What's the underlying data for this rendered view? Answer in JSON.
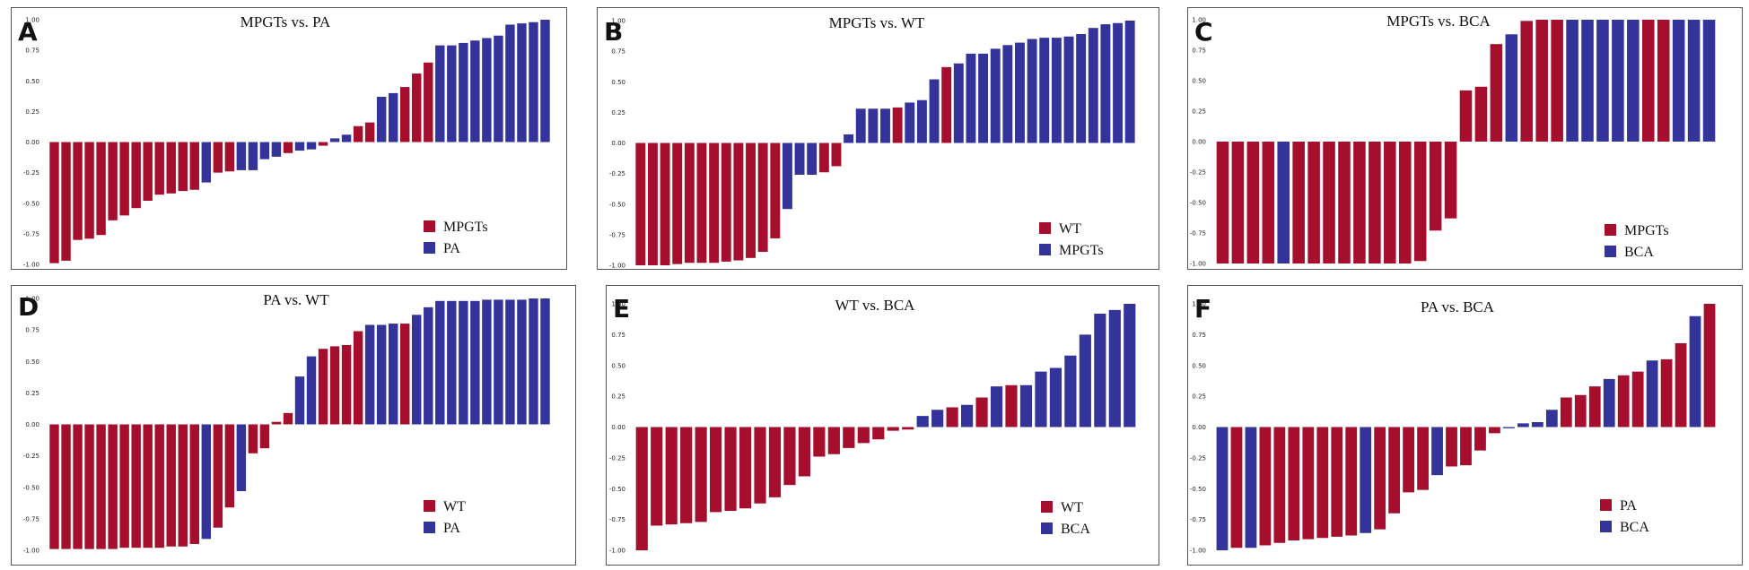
{
  "colors": {
    "red": "#A50F2D",
    "blue": "#333399"
  },
  "chart_data": [
    {
      "type": "bar",
      "panel": "A",
      "title": "MPGTs vs. PA",
      "ylim": [
        -1.0,
        1.0
      ],
      "yticks": [
        "1.00",
        "0.75",
        "0.50",
        "0.25",
        "0.00",
        "-0.25",
        "-0.50",
        "-0.75",
        "-1.00"
      ],
      "legend": [
        {
          "label": "MPGTs",
          "color": "red"
        },
        {
          "label": "PA",
          "color": "blue"
        }
      ],
      "values": [
        -0.99,
        -0.97,
        -0.8,
        -0.79,
        -0.76,
        -0.64,
        -0.6,
        -0.54,
        -0.48,
        -0.43,
        -0.42,
        -0.4,
        -0.39,
        -0.33,
        -0.25,
        -0.24,
        -0.23,
        -0.23,
        -0.14,
        -0.12,
        -0.09,
        -0.07,
        -0.06,
        -0.03,
        0.03,
        0.06,
        0.13,
        0.16,
        0.37,
        0.4,
        0.45,
        0.56,
        0.65,
        0.79,
        0.79,
        0.81,
        0.83,
        0.85,
        0.87,
        0.96,
        0.97,
        0.98,
        1.0
      ],
      "colors": [
        "red",
        "red",
        "red",
        "red",
        "red",
        "red",
        "red",
        "red",
        "red",
        "red",
        "red",
        "red",
        "red",
        "blue",
        "red",
        "red",
        "blue",
        "blue",
        "blue",
        "blue",
        "red",
        "blue",
        "blue",
        "red",
        "blue",
        "blue",
        "red",
        "red",
        "blue",
        "blue",
        "red",
        "red",
        "red",
        "blue",
        "blue",
        "blue",
        "blue",
        "blue",
        "blue",
        "blue",
        "blue",
        "blue",
        "blue"
      ]
    },
    {
      "type": "bar",
      "panel": "B",
      "title": "MPGTs vs. WT",
      "ylim": [
        -1.0,
        1.0
      ],
      "yticks": [
        "1.00",
        "0.75",
        "0.50",
        "0.25",
        "0.00",
        "-0.25",
        "-0.50",
        "-0.75",
        "-1.00"
      ],
      "legend": [
        {
          "label": "WT",
          "color": "red"
        },
        {
          "label": "MPGTs",
          "color": "blue"
        }
      ],
      "values": [
        -1.0,
        -1.0,
        -1.0,
        -0.99,
        -0.98,
        -0.98,
        -0.98,
        -0.97,
        -0.96,
        -0.94,
        -0.89,
        -0.78,
        -0.54,
        -0.26,
        -0.26,
        -0.24,
        -0.19,
        0.07,
        0.28,
        0.28,
        0.28,
        0.29,
        0.33,
        0.35,
        0.52,
        0.62,
        0.65,
        0.73,
        0.73,
        0.77,
        0.8,
        0.82,
        0.85,
        0.86,
        0.86,
        0.87,
        0.89,
        0.94,
        0.97,
        0.98,
        1.0
      ],
      "colors": [
        "red",
        "red",
        "red",
        "red",
        "red",
        "red",
        "red",
        "red",
        "red",
        "red",
        "red",
        "red",
        "blue",
        "blue",
        "blue",
        "red",
        "red",
        "blue",
        "blue",
        "blue",
        "blue",
        "red",
        "blue",
        "blue",
        "blue",
        "red",
        "blue",
        "blue",
        "blue",
        "blue",
        "blue",
        "blue",
        "blue",
        "blue",
        "blue",
        "blue",
        "blue",
        "blue",
        "blue",
        "blue",
        "blue"
      ]
    },
    {
      "type": "bar",
      "panel": "C",
      "title": "MPGTs vs. BCA",
      "ylim": [
        -1.0,
        1.0
      ],
      "yticks": [
        "1.00",
        "0.75",
        "0.50",
        "0.25",
        "0.00",
        "-0.25",
        "-0.50",
        "-0.75",
        "-1.00"
      ],
      "legend": [
        {
          "label": "MPGTs",
          "color": "red"
        },
        {
          "label": "BCA",
          "color": "blue"
        }
      ],
      "values": [
        -1.0,
        -1.0,
        -1.0,
        -1.0,
        -1.0,
        -1.0,
        -1.0,
        -1.0,
        -1.0,
        -1.0,
        -1.0,
        -1.0,
        -1.0,
        -0.98,
        -0.73,
        -0.63,
        0.42,
        0.45,
        0.8,
        0.88,
        0.99,
        1.0,
        1.0,
        1.0,
        1.0,
        1.0,
        1.0,
        1.0,
        1.0,
        1.0,
        1.0,
        1.0,
        1.0
      ],
      "colors": [
        "red",
        "red",
        "red",
        "red",
        "blue",
        "red",
        "red",
        "red",
        "red",
        "red",
        "red",
        "red",
        "red",
        "red",
        "red",
        "red",
        "red",
        "red",
        "red",
        "blue",
        "red",
        "red",
        "red",
        "blue",
        "blue",
        "blue",
        "blue",
        "blue",
        "red",
        "red",
        "blue",
        "blue",
        "blue"
      ]
    },
    {
      "type": "bar",
      "panel": "D",
      "title": "PA vs. WT",
      "ylim": [
        -1.0,
        1.0
      ],
      "yticks": [
        "1.00",
        "0.75",
        "0.50",
        "0.25",
        "0.00",
        "-0.25",
        "-0.50",
        "-0.75",
        "-1.00"
      ],
      "legend": [
        {
          "label": "WT",
          "color": "red"
        },
        {
          "label": "PA",
          "color": "blue"
        }
      ],
      "values": [
        -0.99,
        -0.99,
        -0.99,
        -0.99,
        -0.99,
        -0.99,
        -0.98,
        -0.98,
        -0.98,
        -0.98,
        -0.97,
        -0.97,
        -0.95,
        -0.91,
        -0.82,
        -0.66,
        -0.53,
        -0.23,
        -0.19,
        0.02,
        0.09,
        0.38,
        0.54,
        0.6,
        0.62,
        0.63,
        0.74,
        0.79,
        0.79,
        0.8,
        0.8,
        0.87,
        0.93,
        0.98,
        0.98,
        0.98,
        0.98,
        0.99,
        0.99,
        0.99,
        0.99,
        1.0,
        1.0
      ],
      "colors": [
        "red",
        "red",
        "red",
        "red",
        "red",
        "red",
        "red",
        "red",
        "red",
        "red",
        "red",
        "red",
        "red",
        "blue",
        "red",
        "red",
        "blue",
        "red",
        "red",
        "red",
        "red",
        "blue",
        "blue",
        "red",
        "red",
        "red",
        "red",
        "blue",
        "blue",
        "blue",
        "red",
        "blue",
        "blue",
        "blue",
        "blue",
        "blue",
        "blue",
        "blue",
        "blue",
        "blue",
        "blue",
        "blue",
        "blue"
      ]
    },
    {
      "type": "bar",
      "panel": "E",
      "title": "WT vs. BCA",
      "ylim": [
        -1.0,
        1.0
      ],
      "yticks": [
        "1.00",
        "0.75",
        "0.50",
        "0.25",
        "0.00",
        "-0.25",
        "-0.50",
        "-0.75",
        "-1.00"
      ],
      "legend": [
        {
          "label": "WT",
          "color": "red"
        },
        {
          "label": "BCA",
          "color": "blue"
        }
      ],
      "values": [
        -1.0,
        -0.8,
        -0.79,
        -0.78,
        -0.77,
        -0.69,
        -0.68,
        -0.66,
        -0.62,
        -0.57,
        -0.47,
        -0.4,
        -0.24,
        -0.22,
        -0.17,
        -0.13,
        -0.1,
        -0.03,
        -0.02,
        0.09,
        0.14,
        0.16,
        0.18,
        0.24,
        0.33,
        0.34,
        0.34,
        0.45,
        0.48,
        0.58,
        0.75,
        0.92,
        0.95,
        1.0
      ],
      "colors": [
        "red",
        "red",
        "red",
        "red",
        "red",
        "red",
        "red",
        "red",
        "red",
        "red",
        "red",
        "red",
        "red",
        "red",
        "red",
        "red",
        "red",
        "red",
        "red",
        "blue",
        "blue",
        "red",
        "blue",
        "red",
        "blue",
        "red",
        "blue",
        "blue",
        "blue",
        "blue",
        "blue",
        "blue",
        "blue",
        "blue"
      ]
    },
    {
      "type": "bar",
      "panel": "F",
      "title": "PA vs. BCA",
      "ylim": [
        -1.0,
        1.0
      ],
      "yticks": [
        "1.00",
        "0.75",
        "0.50",
        "0.25",
        "0.00",
        "-0.25",
        "-0.50",
        "-0.75",
        "-1.00"
      ],
      "legend": [
        {
          "label": "PA",
          "color": "red"
        },
        {
          "label": "BCA",
          "color": "blue"
        }
      ],
      "values": [
        -1.0,
        -0.98,
        -0.98,
        -0.96,
        -0.94,
        -0.92,
        -0.91,
        -0.9,
        -0.89,
        -0.88,
        -0.86,
        -0.83,
        -0.7,
        -0.53,
        -0.51,
        -0.39,
        -0.32,
        -0.31,
        -0.19,
        -0.05,
        -0.01,
        0.03,
        0.04,
        0.14,
        0.24,
        0.26,
        0.33,
        0.39,
        0.42,
        0.45,
        0.54,
        0.55,
        0.68,
        0.9,
        1.0
      ],
      "colors": [
        "blue",
        "red",
        "blue",
        "red",
        "red",
        "red",
        "red",
        "red",
        "red",
        "red",
        "blue",
        "red",
        "red",
        "red",
        "red",
        "blue",
        "red",
        "red",
        "red",
        "red",
        "blue",
        "blue",
        "blue",
        "blue",
        "red",
        "red",
        "red",
        "blue",
        "red",
        "red",
        "blue",
        "red",
        "red",
        "blue",
        "red"
      ]
    }
  ]
}
